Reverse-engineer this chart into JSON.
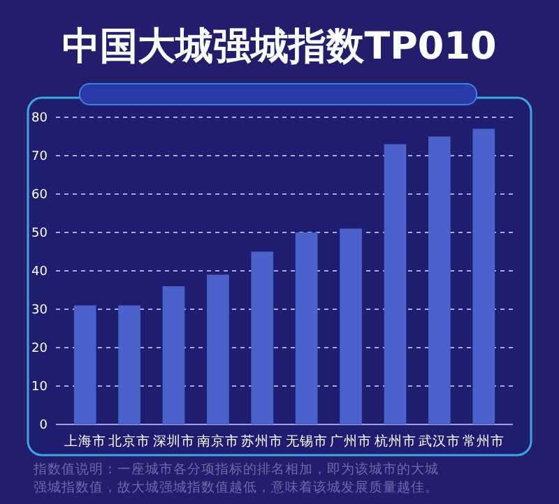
{
  "chart_data": {
    "type": "bar",
    "title": "中国大城强城指数TP010",
    "categories": [
      "上海市",
      "北京市",
      "深圳市",
      "南京市",
      "苏州市",
      "无锡市",
      "广州市",
      "杭州市",
      "武汉市",
      "常州市"
    ],
    "values": [
      31,
      31,
      36,
      39,
      45,
      50,
      51,
      73,
      75,
      77
    ],
    "color": "#4b62cc",
    "ylim": [
      0,
      80
    ],
    "yticks": [
      0,
      10,
      20,
      30,
      40,
      50,
      60,
      70,
      80
    ],
    "grid": "y",
    "annotations": [
      "指数值说明：一座城市各分项指标的排名相加，即为该城市的大城强城指数值，故大城强城指数值越低，意味着该城发展质量越佳。"
    ]
  }
}
